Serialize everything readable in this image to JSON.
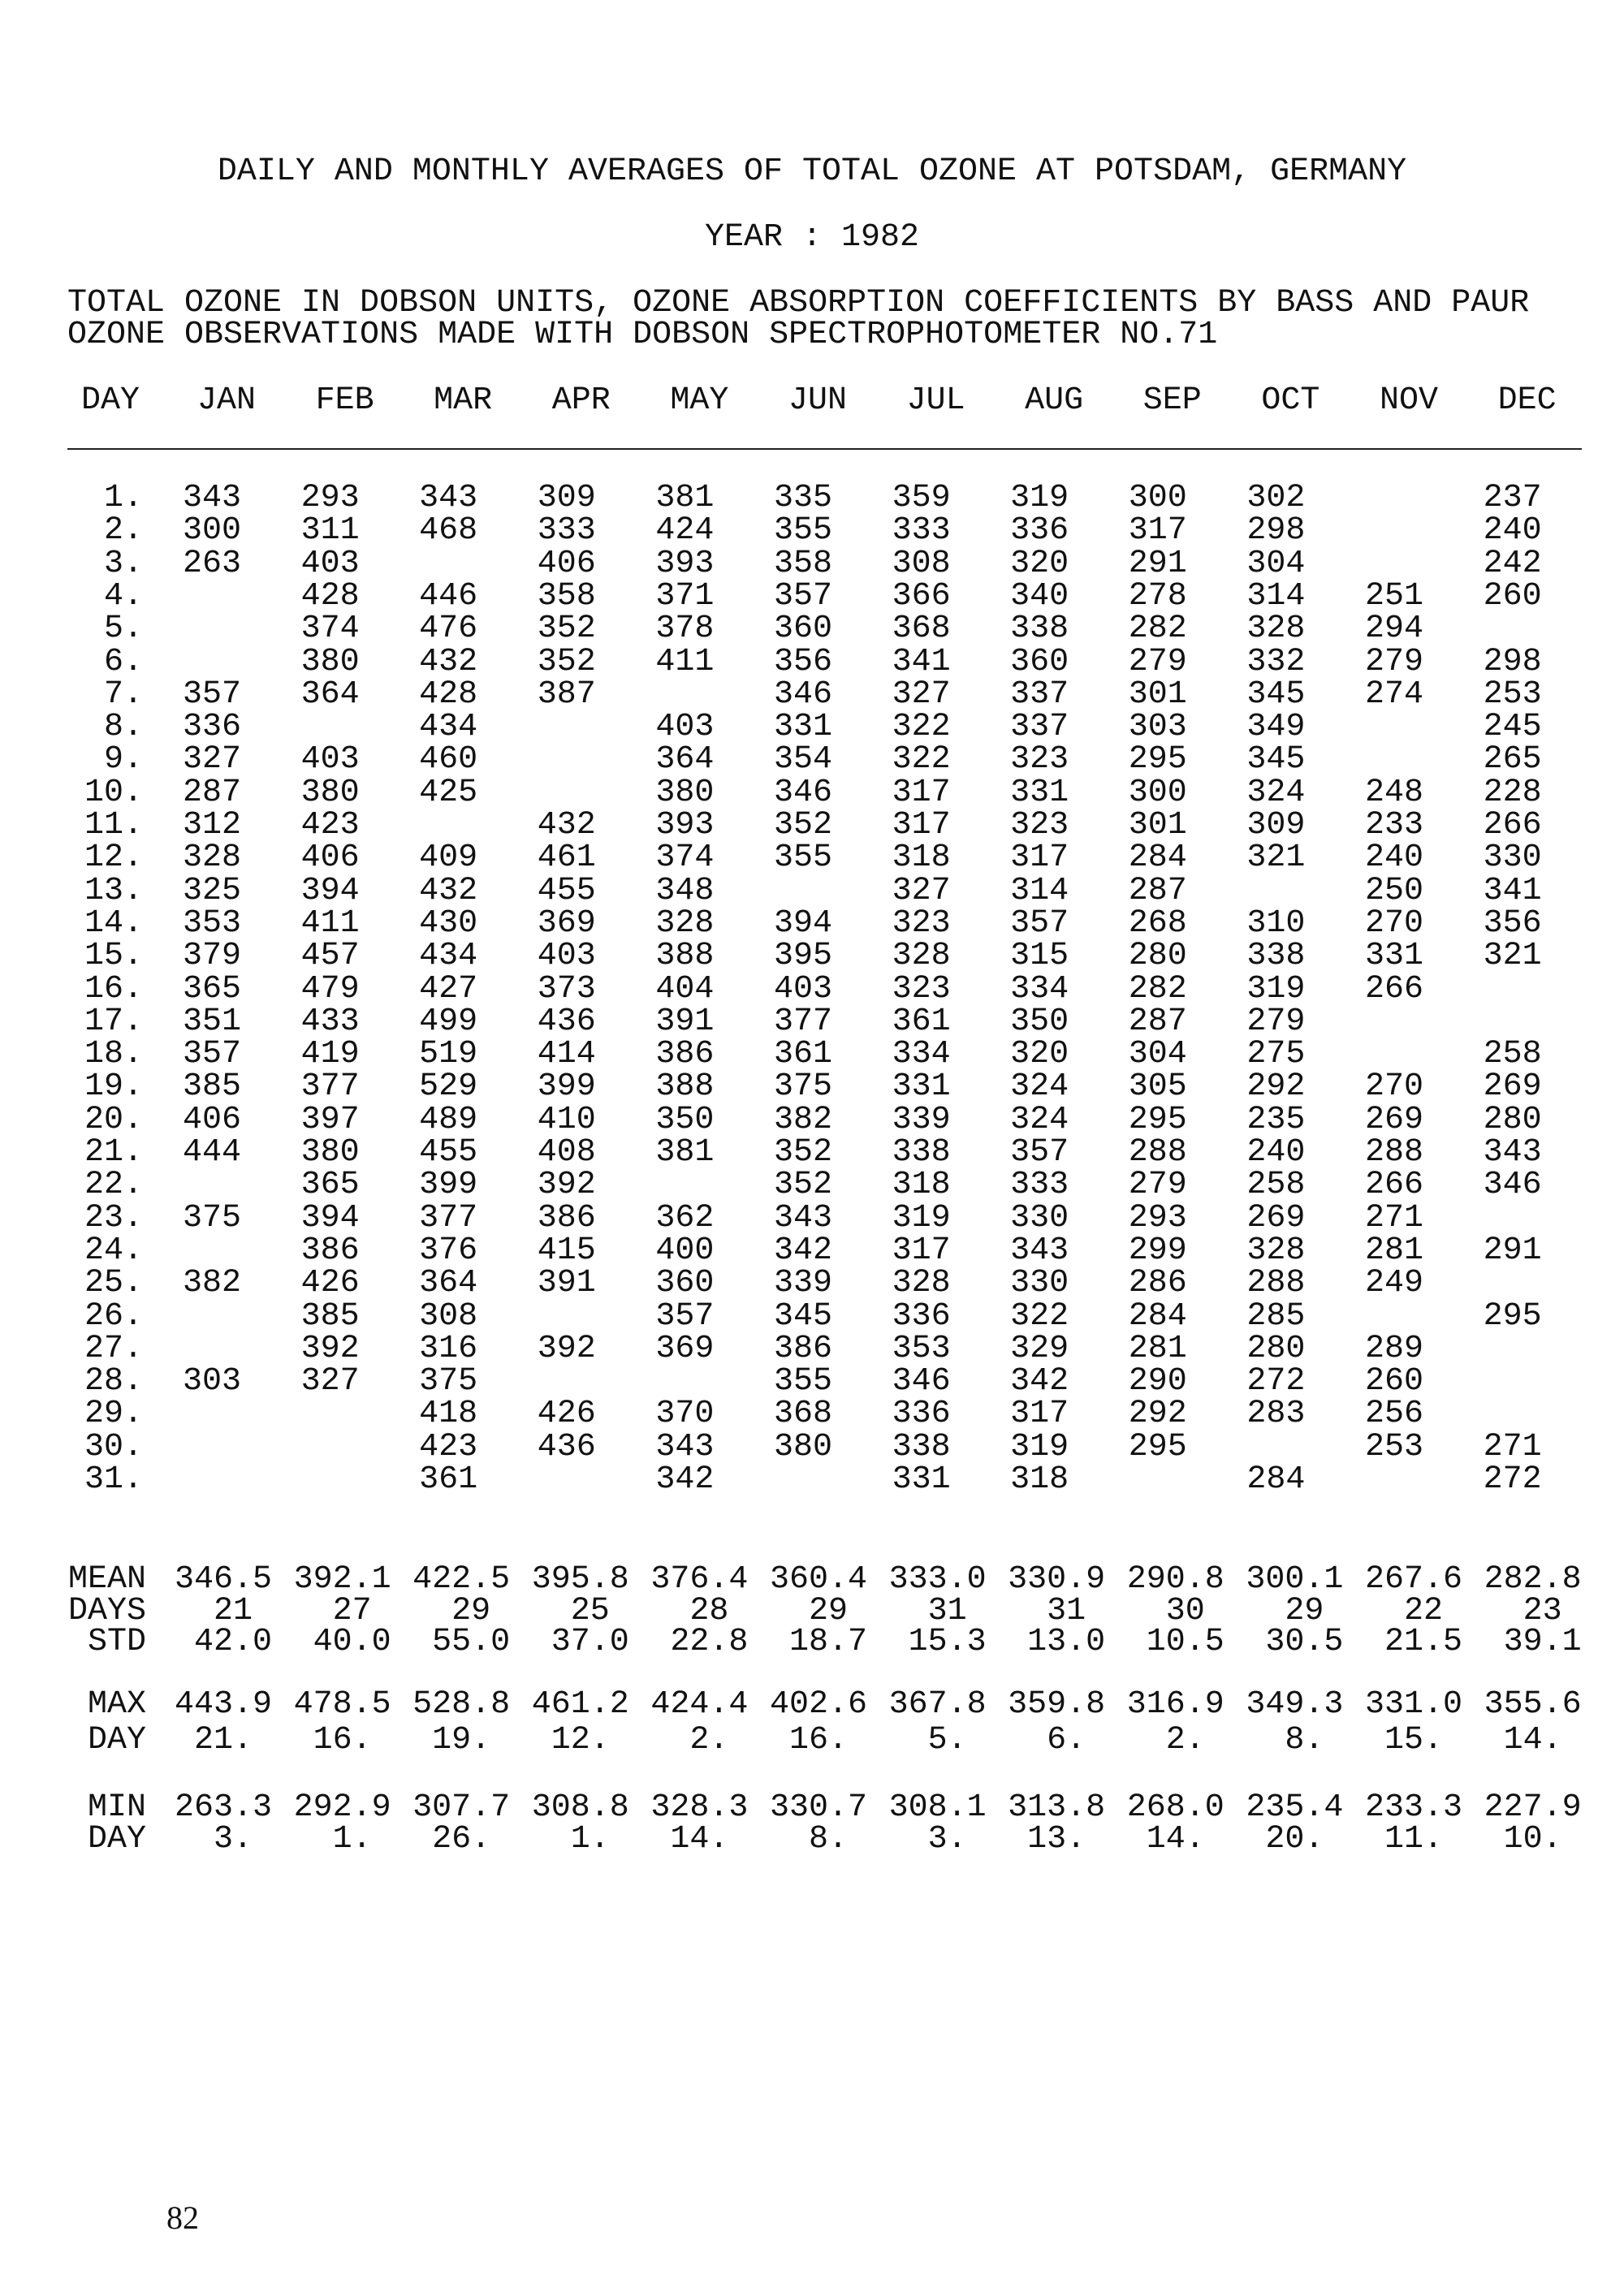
{
  "title": "DAILY AND MONTHLY AVERAGES OF TOTAL OZONE AT POTSDAM, GERMANY",
  "year_line": "YEAR : 1982",
  "description_lines": [
    "TOTAL OZONE IN DOBSON UNITS, OZONE ABSORPTION COEFFICIENTS BY BASS AND PAUR",
    "OZONE OBSERVATIONS MADE WITH DOBSON SPECTROPHOTOMETER NO.71"
  ],
  "table": {
    "day_header": "DAY",
    "months": [
      "JAN",
      "FEB",
      "MAR",
      "APR",
      "MAY",
      "JUN",
      "JUL",
      "AUG",
      "SEP",
      "OCT",
      "NOV",
      "DEC"
    ],
    "rows": [
      {
        "day": "1.",
        "values": [
          "343",
          "293",
          "343",
          "309",
          "381",
          "335",
          "359",
          "319",
          "300",
          "302",
          "",
          "237"
        ]
      },
      {
        "day": "2.",
        "values": [
          "300",
          "311",
          "468",
          "333",
          "424",
          "355",
          "333",
          "336",
          "317",
          "298",
          "",
          "240"
        ]
      },
      {
        "day": "3.",
        "values": [
          "263",
          "403",
          "",
          "406",
          "393",
          "358",
          "308",
          "320",
          "291",
          "304",
          "",
          "242"
        ]
      },
      {
        "day": "4.",
        "values": [
          "",
          "428",
          "446",
          "358",
          "371",
          "357",
          "366",
          "340",
          "278",
          "314",
          "251",
          "260"
        ]
      },
      {
        "day": "5.",
        "values": [
          "",
          "374",
          "476",
          "352",
          "378",
          "360",
          "368",
          "338",
          "282",
          "328",
          "294",
          ""
        ]
      },
      {
        "day": "6.",
        "values": [
          "",
          "380",
          "432",
          "352",
          "411",
          "356",
          "341",
          "360",
          "279",
          "332",
          "279",
          "298"
        ]
      },
      {
        "day": "7.",
        "values": [
          "357",
          "364",
          "428",
          "387",
          "",
          "346",
          "327",
          "337",
          "301",
          "345",
          "274",
          "253"
        ]
      },
      {
        "day": "8.",
        "values": [
          "336",
          "",
          "434",
          "",
          "403",
          "331",
          "322",
          "337",
          "303",
          "349",
          "",
          "245"
        ]
      },
      {
        "day": "9.",
        "values": [
          "327",
          "403",
          "460",
          "",
          "364",
          "354",
          "322",
          "323",
          "295",
          "345",
          "",
          "265"
        ]
      },
      {
        "day": "10.",
        "values": [
          "287",
          "380",
          "425",
          "",
          "380",
          "346",
          "317",
          "331",
          "300",
          "324",
          "248",
          "228"
        ]
      },
      {
        "day": "11.",
        "values": [
          "312",
          "423",
          "",
          "432",
          "393",
          "352",
          "317",
          "323",
          "301",
          "309",
          "233",
          "266"
        ]
      },
      {
        "day": "12.",
        "values": [
          "328",
          "406",
          "409",
          "461",
          "374",
          "355",
          "318",
          "317",
          "284",
          "321",
          "240",
          "330"
        ]
      },
      {
        "day": "13.",
        "values": [
          "325",
          "394",
          "432",
          "455",
          "348",
          "",
          "327",
          "314",
          "287",
          "",
          "250",
          "341"
        ]
      },
      {
        "day": "14.",
        "values": [
          "353",
          "411",
          "430",
          "369",
          "328",
          "394",
          "323",
          "357",
          "268",
          "310",
          "270",
          "356"
        ]
      },
      {
        "day": "15.",
        "values": [
          "379",
          "457",
          "434",
          "403",
          "388",
          "395",
          "328",
          "315",
          "280",
          "338",
          "331",
          "321"
        ]
      },
      {
        "day": "16.",
        "values": [
          "365",
          "479",
          "427",
          "373",
          "404",
          "403",
          "323",
          "334",
          "282",
          "319",
          "266",
          ""
        ]
      },
      {
        "day": "17.",
        "values": [
          "351",
          "433",
          "499",
          "436",
          "391",
          "377",
          "361",
          "350",
          "287",
          "279",
          "",
          ""
        ]
      },
      {
        "day": "18.",
        "values": [
          "357",
          "419",
          "519",
          "414",
          "386",
          "361",
          "334",
          "320",
          "304",
          "275",
          "",
          "258"
        ]
      },
      {
        "day": "19.",
        "values": [
          "385",
          "377",
          "529",
          "399",
          "388",
          "375",
          "331",
          "324",
          "305",
          "292",
          "270",
          "269"
        ]
      },
      {
        "day": "20.",
        "values": [
          "406",
          "397",
          "489",
          "410",
          "350",
          "382",
          "339",
          "324",
          "295",
          "235",
          "269",
          "280"
        ]
      },
      {
        "day": "21.",
        "values": [
          "444",
          "380",
          "455",
          "408",
          "381",
          "352",
          "338",
          "357",
          "288",
          "240",
          "288",
          "343"
        ]
      },
      {
        "day": "22.",
        "values": [
          "",
          "365",
          "399",
          "392",
          "",
          "352",
          "318",
          "333",
          "279",
          "258",
          "266",
          "346"
        ]
      },
      {
        "day": "23.",
        "values": [
          "375",
          "394",
          "377",
          "386",
          "362",
          "343",
          "319",
          "330",
          "293",
          "269",
          "271",
          ""
        ]
      },
      {
        "day": "24.",
        "values": [
          "",
          "386",
          "376",
          "415",
          "400",
          "342",
          "317",
          "343",
          "299",
          "328",
          "281",
          "291"
        ]
      },
      {
        "day": "25.",
        "values": [
          "382",
          "426",
          "364",
          "391",
          "360",
          "339",
          "328",
          "330",
          "286",
          "288",
          "249",
          ""
        ]
      },
      {
        "day": "26.",
        "values": [
          "",
          "385",
          "308",
          "",
          "357",
          "345",
          "336",
          "322",
          "284",
          "285",
          "",
          "295"
        ]
      },
      {
        "day": "27.",
        "values": [
          "",
          "392",
          "316",
          "392",
          "369",
          "386",
          "353",
          "329",
          "281",
          "280",
          "289",
          ""
        ]
      },
      {
        "day": "28.",
        "values": [
          "303",
          "327",
          "375",
          "",
          "",
          "355",
          "346",
          "342",
          "290",
          "272",
          "260",
          ""
        ]
      },
      {
        "day": "29.",
        "values": [
          "",
          "",
          "418",
          "426",
          "370",
          "368",
          "336",
          "317",
          "292",
          "283",
          "256",
          ""
        ]
      },
      {
        "day": "30.",
        "values": [
          "",
          "",
          "423",
          "436",
          "343",
          "380",
          "338",
          "319",
          "295",
          "",
          "253",
          "271"
        ]
      },
      {
        "day": "31.",
        "values": [
          "",
          "",
          "361",
          "",
          "342",
          "",
          "331",
          "318",
          "",
          "284",
          "",
          "272"
        ]
      }
    ]
  },
  "summary": [
    {
      "label": "MEAN",
      "values": [
        "346.5",
        "392.1",
        "422.5",
        "395.8",
        "376.4",
        "360.4",
        "333.0",
        "330.9",
        "290.8",
        "300.1",
        "267.6",
        "282.8"
      ]
    },
    {
      "label": "DAYS",
      "values": [
        "21",
        "27",
        "29",
        "25",
        "28",
        "29",
        "31",
        "31",
        "30",
        "29",
        "22",
        "23"
      ]
    },
    {
      "label": "STD",
      "values": [
        "42.0",
        "40.0",
        "55.0",
        "37.0",
        "22.8",
        "18.7",
        "15.3",
        "13.0",
        "10.5",
        "30.5",
        "21.5",
        "39.1"
      ]
    },
    {
      "label": "MAX",
      "values": [
        "443.9",
        "478.5",
        "528.8",
        "461.2",
        "424.4",
        "402.6",
        "367.8",
        "359.8",
        "316.9",
        "349.3",
        "331.0",
        "355.6"
      ]
    },
    {
      "label": "DAY",
      "values": [
        "21.",
        "16.",
        "19.",
        "12.",
        "2.",
        "16.",
        "5.",
        "6.",
        "2.",
        "8.",
        "15.",
        "14."
      ]
    },
    {
      "label": "MIN",
      "values": [
        "263.3",
        "292.9",
        "307.7",
        "308.8",
        "328.3",
        "330.7",
        "308.1",
        "313.8",
        "268.0",
        "235.4",
        "233.3",
        "227.9"
      ]
    },
    {
      "label": "DAY",
      "values": [
        "3.",
        "1.",
        "26.",
        "1.",
        "14.",
        "8.",
        "3.",
        "13.",
        "14.",
        "20.",
        "11.",
        "10."
      ]
    }
  ],
  "page_number": "82"
}
